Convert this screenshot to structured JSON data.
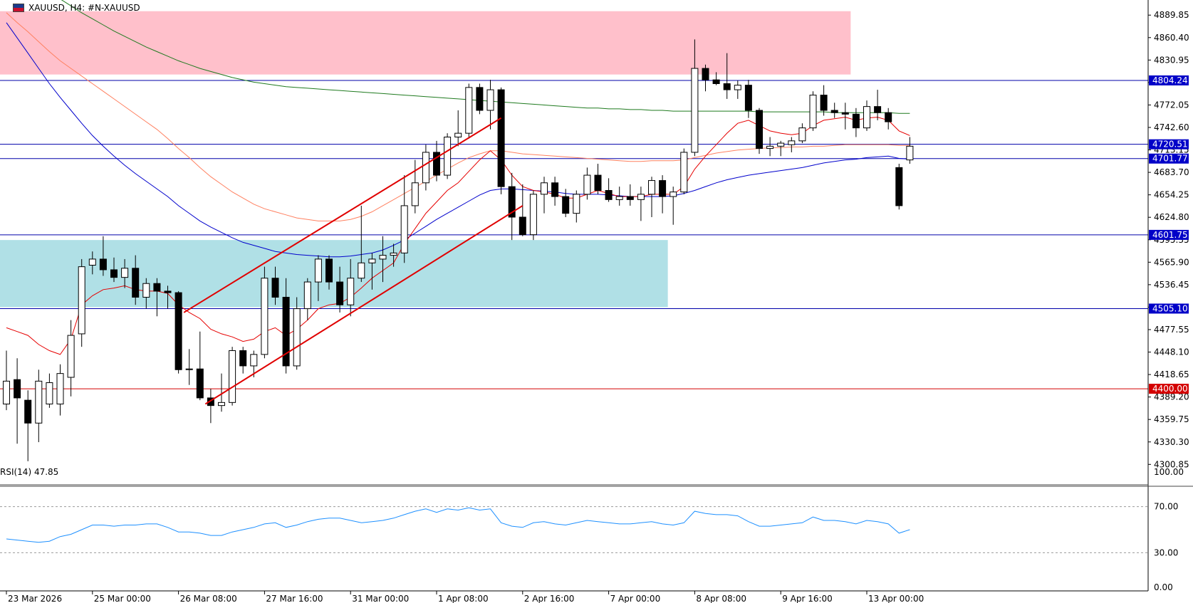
{
  "header": {
    "symbol_label": "XAUUSD, H4:  #N-XAUUSD",
    "flag_icon": "us-flag-icon"
  },
  "rsi_panel": {
    "label": "RSI(14) 47.85",
    "levels": [
      100,
      70,
      30,
      0
    ],
    "level_labels": [
      "100.00",
      "70.00",
      "30.00",
      "0.00"
    ]
  },
  "colors": {
    "bull_fill": "#ffffff",
    "bear_fill": "#000000",
    "ma_fast": "#e60000",
    "ma_slow_red": "#ff8060",
    "ma_blue": "#0000cc",
    "ma_green": "#1f7a1f",
    "resistance_zone": "#ffc0cb",
    "support_zone": "#b0e0e6",
    "hline_blue": "#0000aa",
    "hline_red": "#d40000",
    "rsi_line": "#1e90ff"
  },
  "chart_data": {
    "type": "candlestick",
    "title": "",
    "ylim": [
      4275,
      4905
    ],
    "y_ticks": [
      4889.85,
      4860.4,
      4830.95,
      4801.5,
      4772.05,
      4742.6,
      4713.15,
      4683.7,
      4654.25,
      4624.8,
      4595.35,
      4565.9,
      4536.45,
      4507.0,
      4477.55,
      4448.1,
      4418.65,
      4389.2,
      4359.75,
      4330.3,
      4300.85
    ],
    "y_tick_labels": [
      "4889.85",
      "4860.40",
      "4830.95",
      "4801.50",
      "4772.05",
      "4742.60",
      "4713.15",
      "4683.70",
      "4654.25",
      "4624.80",
      "4595.35",
      "4565.90",
      "4536.45",
      "4507.00",
      "4477.55",
      "4448.10",
      "4418.65",
      "4389.20",
      "4359.75",
      "4330.30",
      "4300.85"
    ],
    "x_tick_labels": [
      "23 Mar 2026",
      "25 Mar 00:00",
      "26 Mar 08:00",
      "27 Mar 16:00",
      "31 Mar 00:00",
      "1 Apr 08:00",
      "2 Apr 16:00",
      "7 Apr 00:00",
      "8 Apr 08:00",
      "9 Apr 16:00",
      "13 Apr 00:00"
    ],
    "x_tick_bars": [
      0,
      8,
      16,
      24,
      32,
      40,
      48,
      56,
      64,
      72,
      80
    ],
    "horizontal_levels": [
      {
        "value": 4804.24,
        "label": "4804.24",
        "color": "blue"
      },
      {
        "value": 4720.51,
        "label": "4720.51",
        "color": "blue"
      },
      {
        "value": 4701.77,
        "label": "4701.77",
        "color": "blue"
      },
      {
        "value": 4601.75,
        "label": "4601.75",
        "color": "blue"
      },
      {
        "value": 4505.1,
        "label": "4505.10",
        "color": "blue"
      },
      {
        "value": 4400.0,
        "label": "4400.00",
        "color": "red"
      }
    ],
    "zones": [
      {
        "name": "resistance",
        "y_from": 4812,
        "y_to": 4895,
        "bar_from": -1,
        "bar_to": 78.5
      },
      {
        "name": "support",
        "y_from": 4507,
        "y_to": 4595,
        "bar_from": -1,
        "bar_to": 61.5
      }
    ],
    "trendlines": [
      {
        "bar1": 16.5,
        "y1": 4500,
        "bar2": 46.0,
        "y2": 4755
      },
      {
        "bar1": 18.5,
        "y1": 4380,
        "bar2": 48.0,
        "y2": 4640
      }
    ],
    "candles": [
      [
        4380,
        4450,
        4372,
        4410
      ],
      [
        4412,
        4440,
        4328,
        4388
      ],
      [
        4385,
        4398,
        4305,
        4355
      ],
      [
        4355,
        4425,
        4330,
        4410
      ],
      [
        4380,
        4420,
        4375,
        4408
      ],
      [
        4380,
        4432,
        4365,
        4420
      ],
      [
        4415,
        4490,
        4390,
        4470
      ],
      [
        4472,
        4570,
        4455,
        4560
      ],
      [
        4562,
        4580,
        4550,
        4570
      ],
      [
        4570,
        4600,
        4548,
        4556
      ],
      [
        4556,
        4572,
        4540,
        4546
      ],
      [
        4546,
        4570,
        4532,
        4558
      ],
      [
        4558,
        4575,
        4510,
        4520
      ],
      [
        4520,
        4545,
        4505,
        4538
      ],
      [
        4538,
        4545,
        4495,
        4528
      ],
      [
        4528,
        4535,
        4505,
        4526
      ],
      [
        4526,
        4528,
        4420,
        4425
      ],
      [
        4425,
        4452,
        4405,
        4426
      ],
      [
        4426,
        4475,
        4385,
        4388
      ],
      [
        4388,
        4400,
        4355,
        4378
      ],
      [
        4378,
        4420,
        4370,
        4382
      ],
      [
        4382,
        4455,
        4378,
        4450
      ],
      [
        4450,
        4455,
        4420,
        4430
      ],
      [
        4430,
        4450,
        4415,
        4445
      ],
      [
        4445,
        4560,
        4440,
        4545
      ],
      [
        4545,
        4560,
        4510,
        4520
      ],
      [
        4520,
        4545,
        4420,
        4430
      ],
      [
        4430,
        4520,
        4425,
        4505
      ],
      [
        4505,
        4545,
        4490,
        4540
      ],
      [
        4540,
        4575,
        4515,
        4570
      ],
      [
        4570,
        4575,
        4530,
        4540
      ],
      [
        4540,
        4560,
        4500,
        4510
      ],
      [
        4510,
        4570,
        4495,
        4545
      ],
      [
        4545,
        4640,
        4540,
        4565
      ],
      [
        4565,
        4578,
        4530,
        4570
      ],
      [
        4570,
        4600,
        4540,
        4575
      ],
      [
        4575,
        4590,
        4560,
        4578
      ],
      [
        4578,
        4680,
        4565,
        4640
      ],
      [
        4640,
        4700,
        4630,
        4670
      ],
      [
        4670,
        4720,
        4660,
        4710
      ],
      [
        4710,
        4725,
        4672,
        4680
      ],
      [
        4680,
        4735,
        4675,
        4730
      ],
      [
        4730,
        4765,
        4718,
        4735
      ],
      [
        4735,
        4800,
        4728,
        4795
      ],
      [
        4795,
        4800,
        4760,
        4765
      ],
      [
        4765,
        4805,
        4740,
        4792
      ],
      [
        4792,
        4795,
        4655,
        4665
      ],
      [
        4665,
        4683,
        4595,
        4625
      ],
      [
        4625,
        4668,
        4600,
        4602
      ],
      [
        4602,
        4660,
        4595,
        4655
      ],
      [
        4655,
        4678,
        4630,
        4670
      ],
      [
        4670,
        4678,
        4640,
        4652
      ],
      [
        4652,
        4662,
        4625,
        4630
      ],
      [
        4630,
        4660,
        4618,
        4655
      ],
      [
        4655,
        4690,
        4648,
        4680
      ],
      [
        4680,
        4695,
        4655,
        4660
      ],
      [
        4660,
        4676,
        4645,
        4648
      ],
      [
        4648,
        4665,
        4640,
        4652
      ],
      [
        4652,
        4668,
        4640,
        4648
      ],
      [
        4648,
        4665,
        4620,
        4655
      ],
      [
        4655,
        4678,
        4625,
        4673
      ],
      [
        4673,
        4680,
        4630,
        4652
      ],
      [
        4652,
        4665,
        4615,
        4658
      ],
      [
        4658,
        4715,
        4655,
        4710
      ],
      [
        4710,
        4858,
        4705,
        4820
      ],
      [
        4820,
        4825,
        4790,
        4805
      ],
      [
        4805,
        4815,
        4798,
        4800
      ],
      [
        4800,
        4840,
        4780,
        4792
      ],
      [
        4792,
        4804,
        4780,
        4798
      ],
      [
        4798,
        4805,
        4755,
        4765
      ],
      [
        4765,
        4768,
        4708,
        4715
      ],
      [
        4715,
        4730,
        4705,
        4718
      ],
      [
        4718,
        4725,
        4705,
        4722
      ],
      [
        4720,
        4730,
        4710,
        4725
      ],
      [
        4725,
        4748,
        4722,
        4742
      ],
      [
        4742,
        4790,
        4738,
        4785
      ],
      [
        4785,
        4798,
        4758,
        4765
      ],
      [
        4765,
        4775,
        4755,
        4762
      ],
      [
        4762,
        4775,
        4740,
        4760
      ],
      [
        4760,
        4768,
        4730,
        4742
      ],
      [
        4742,
        4778,
        4738,
        4770
      ],
      [
        4770,
        4792,
        4752,
        4762
      ],
      [
        4762,
        4768,
        4740,
        4750
      ],
      [
        4690,
        4695,
        4635,
        4640
      ],
      [
        4700,
        4730,
        4695,
        4718
      ]
    ],
    "ma_fast_values": [
      4480,
      4475,
      4470,
      4458,
      4450,
      4445,
      4465,
      4510,
      4522,
      4530,
      4532,
      4535,
      4530,
      4528,
      4528,
      4525,
      4510,
      4500,
      4492,
      4478,
      4472,
      4468,
      4462,
      4465,
      4475,
      4480,
      4470,
      4478,
      4490,
      4505,
      4510,
      4512,
      4520,
      4532,
      4545,
      4555,
      4565,
      4590,
      4610,
      4630,
      4645,
      4660,
      4670,
      4685,
      4700,
      4712,
      4700,
      4680,
      4665,
      4660,
      4658,
      4655,
      4650,
      4650,
      4655,
      4660,
      4656,
      4652,
      4652,
      4652,
      4655,
      4655,
      4655,
      4665,
      4688,
      4705,
      4720,
      4735,
      4748,
      4752,
      4745,
      4738,
      4735,
      4733,
      4735,
      4745,
      4752,
      4754,
      4756,
      4752,
      4755,
      4756,
      4752,
      4738,
      4732
    ],
    "ma_slow_values": [
      4893,
      4880,
      4868,
      4855,
      4842,
      4830,
      4820,
      4810,
      4800,
      4790,
      4780,
      4770,
      4760,
      4750,
      4740,
      4728,
      4715,
      4703,
      4690,
      4678,
      4668,
      4658,
      4650,
      4642,
      4636,
      4632,
      4628,
      4624,
      4622,
      4620,
      4620,
      4620,
      4622,
      4626,
      4632,
      4640,
      4648,
      4656,
      4664,
      4672,
      4680,
      4688,
      4696,
      4703,
      4708,
      4712,
      4712,
      4710,
      4708,
      4707,
      4706,
      4705,
      4704,
      4703,
      4702,
      4701,
      4700,
      4699,
      4698,
      4698,
      4699,
      4699,
      4699,
      4700,
      4703,
      4706,
      4709,
      4711,
      4713,
      4714,
      4715,
      4716,
      4716,
      4717,
      4717,
      4718,
      4718,
      4719,
      4720,
      4720,
      4720,
      4720,
      4720,
      4719,
      4719
    ],
    "ma_blue_values": [
      4880,
      4860,
      4840,
      4820,
      4800,
      4782,
      4765,
      4748,
      4732,
      4718,
      4705,
      4693,
      4682,
      4672,
      4662,
      4652,
      4640,
      4630,
      4620,
      4612,
      4605,
      4598,
      4592,
      4588,
      4584,
      4580,
      4578,
      4576,
      4575,
      4574,
      4573,
      4573,
      4574,
      4576,
      4578,
      4582,
      4588,
      4595,
      4604,
      4613,
      4622,
      4630,
      4638,
      4646,
      4654,
      4660,
      4662,
      4662,
      4661,
      4660,
      4659,
      4658,
      4656,
      4655,
      4655,
      4655,
      4654,
      4653,
      4652,
      4652,
      4652,
      4652,
      4653,
      4656,
      4660,
      4665,
      4670,
      4674,
      4677,
      4680,
      4682,
      4684,
      4686,
      4688,
      4690,
      4693,
      4696,
      4698,
      4700,
      4701,
      4703,
      4704,
      4705,
      4702,
      4701
    ],
    "ma_green_values": [
      4960,
      4950,
      4940,
      4930,
      4920,
      4911,
      4902,
      4893,
      4885,
      4877,
      4869,
      4862,
      4855,
      4848,
      4842,
      4836,
      4830,
      4825,
      4820,
      4816,
      4812,
      4808,
      4805,
      4802,
      4800,
      4798,
      4796,
      4795,
      4794,
      4793,
      4792,
      4791,
      4790,
      4789,
      4788,
      4787,
      4786,
      4785,
      4784,
      4783,
      4782,
      4781,
      4780,
      4779,
      4778,
      4777,
      4776,
      4775,
      4774,
      4773,
      4772,
      4771,
      4770,
      4769,
      4768,
      4768,
      4767,
      4767,
      4766,
      4766,
      4765,
      4765,
      4764,
      4764,
      4764,
      4764,
      4764,
      4764,
      4764,
      4764,
      4763,
      4763,
      4763,
      4763,
      4763,
      4763,
      4763,
      4762,
      4762,
      4762,
      4762,
      4762,
      4762,
      4761,
      4761
    ],
    "rsi_values": [
      42,
      41,
      40,
      39,
      40,
      44,
      46,
      50,
      54,
      54,
      53,
      54,
      54,
      55,
      55,
      52,
      48,
      48,
      47,
      45,
      45,
      48,
      50,
      52,
      55,
      56,
      52,
      54,
      57,
      59,
      60,
      60,
      58,
      56,
      57,
      58,
      60,
      63,
      66,
      68,
      65,
      68,
      67,
      69,
      67,
      68,
      56,
      53,
      52,
      56,
      57,
      55,
      54,
      56,
      58,
      57,
      56,
      55,
      55,
      56,
      57,
      55,
      54,
      56,
      66,
      64,
      63,
      63,
      62,
      57,
      53,
      53,
      54,
      55,
      56,
      61,
      58,
      58,
      57,
      55,
      58,
      57,
      55,
      47,
      50
    ]
  }
}
